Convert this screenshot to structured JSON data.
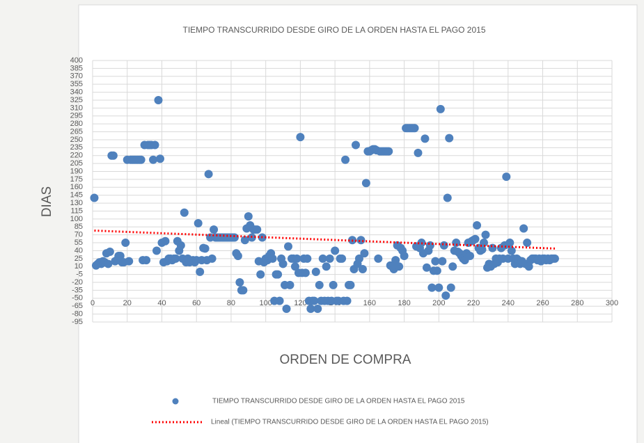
{
  "chart_data": {
    "type": "scatter",
    "title": "TIEMPO TRANSCURRIDO DESDE GIRO DE LA ORDEN HASTA EL PAGO 2015",
    "x_label": "ORDEN DE COMPRA",
    "y_label": "DIAS",
    "xlim": [
      0,
      300
    ],
    "xticks": [
      0,
      20,
      40,
      60,
      80,
      100,
      120,
      140,
      160,
      180,
      200,
      220,
      240,
      260,
      280,
      300
    ],
    "ylim": [
      -95,
      400
    ],
    "yticks": [
      -95,
      -80,
      -65,
      -50,
      -35,
      -20,
      -5,
      10,
      25,
      40,
      55,
      70,
      85,
      100,
      115,
      130,
      145,
      160,
      175,
      190,
      205,
      220,
      235,
      250,
      265,
      280,
      295,
      310,
      325,
      340,
      355,
      370,
      385,
      400
    ],
    "grid": true,
    "series": [
      {
        "name": "TIEMPO TRANSCURRIDO DESDE GIRO DE LA ORDEN HASTA EL PAGO 2015",
        "color": "#4f81bd",
        "x": [
          1,
          2,
          3,
          4,
          5,
          6,
          7,
          8,
          9,
          10,
          11,
          12,
          13,
          14,
          15,
          16,
          17,
          18,
          19,
          20,
          21,
          22,
          23,
          24,
          25,
          26,
          27,
          28,
          29,
          30,
          31,
          32,
          33,
          34,
          35,
          36,
          37,
          38,
          39,
          40,
          41,
          42,
          43,
          44,
          45,
          46,
          47,
          48,
          49,
          50,
          51,
          52,
          53,
          54,
          55,
          56,
          57,
          58,
          59,
          60,
          61,
          62,
          63,
          64,
          65,
          66,
          67,
          68,
          69,
          70,
          71,
          72,
          73,
          74,
          75,
          76,
          77,
          78,
          79,
          80,
          81,
          82,
          83,
          84,
          85,
          86,
          87,
          88,
          89,
          90,
          91,
          92,
          93,
          94,
          95,
          96,
          97,
          98,
          99,
          100,
          101,
          102,
          103,
          104,
          105,
          106,
          107,
          108,
          109,
          110,
          111,
          112,
          113,
          114,
          115,
          116,
          117,
          118,
          119,
          120,
          121,
          122,
          123,
          124,
          125,
          126,
          127,
          128,
          129,
          130,
          131,
          132,
          133,
          134,
          135,
          136,
          137,
          138,
          139,
          140,
          141,
          142,
          143,
          144,
          145,
          146,
          147,
          148,
          149,
          150,
          151,
          152,
          153,
          154,
          155,
          156,
          157,
          158,
          159,
          160,
          161,
          162,
          163,
          164,
          165,
          166,
          167,
          168,
          169,
          170,
          171,
          172,
          173,
          174,
          175,
          176,
          177,
          178,
          179,
          180,
          181,
          182,
          183,
          184,
          185,
          186,
          187,
          188,
          189,
          190,
          191,
          192,
          193,
          194,
          195,
          196,
          197,
          198,
          199,
          200,
          201,
          202,
          203,
          204,
          205,
          206,
          207,
          208,
          209,
          210,
          211,
          212,
          213,
          214,
          215,
          216,
          217,
          218,
          219,
          220,
          221,
          222,
          223,
          224,
          225,
          226,
          227,
          228,
          229,
          230,
          231,
          232,
          233,
          234,
          235,
          236,
          237,
          238,
          239,
          240,
          241,
          242,
          243,
          244,
          245,
          246,
          247,
          248,
          249,
          250,
          251,
          252,
          253,
          254,
          255,
          256,
          257,
          258,
          259,
          260,
          261,
          262,
          263,
          264,
          265,
          266,
          267
        ],
        "values": [
          140,
          12,
          15,
          18,
          15,
          20,
          18,
          35,
          15,
          38,
          220,
          220,
          20,
          22,
          30,
          30,
          18,
          18,
          55,
          212,
          20,
          212,
          212,
          212,
          212,
          212,
          212,
          212,
          22,
          240,
          22,
          240,
          240,
          240,
          212,
          240,
          40,
          325,
          214,
          55,
          18,
          58,
          20,
          25,
          25,
          22,
          25,
          25,
          58,
          40,
          50,
          25,
          112,
          18,
          25,
          18,
          20,
          22,
          18,
          22,
          92,
          0,
          22,
          45,
          44,
          22,
          185,
          65,
          25,
          80,
          65,
          65,
          65,
          65,
          65,
          65,
          65,
          65,
          65,
          65,
          65,
          65,
          35,
          30,
          -20,
          -35,
          -35,
          60,
          82,
          105,
          88,
          65,
          80,
          80,
          80,
          20,
          -5,
          65,
          18,
          25,
          22,
          30,
          35,
          25,
          -55,
          -5,
          -5,
          -55,
          25,
          15,
          -25,
          -70,
          48,
          -25,
          25,
          25,
          10,
          25,
          -2,
          255,
          -2,
          25,
          -2,
          25,
          -55,
          -70,
          -55,
          -55,
          0,
          -70,
          -25,
          -55,
          25,
          -55,
          10,
          -55,
          25,
          -55,
          -25,
          40,
          -55,
          -55,
          25,
          25,
          -55,
          212,
          -55,
          -25,
          -25,
          60,
          5,
          240,
          15,
          25,
          60,
          5,
          35,
          168,
          228,
          228,
          230,
          232,
          232,
          230,
          25,
          228,
          228,
          228,
          228,
          228,
          228,
          12,
          10,
          5,
          22,
          50,
          10,
          45,
          40,
          30,
          272,
          272,
          272,
          272,
          272,
          272,
          48,
          225,
          45,
          55,
          35,
          252,
          8,
          40,
          50,
          -30,
          2,
          20,
          2,
          -30,
          308,
          20,
          50,
          -45,
          140,
          253,
          -30,
          10,
          40,
          55,
          38,
          35,
          30,
          25,
          22,
          35,
          55,
          30,
          58,
          60,
          62,
          88,
          45,
          40,
          42,
          55,
          70,
          8,
          15,
          10,
          45,
          15,
          25,
          18,
          25,
          45,
          25,
          50,
          180,
          25,
          55,
          40,
          25,
          15,
          25,
          22,
          15,
          20,
          82,
          15,
          55,
          10,
          22,
          25,
          25,
          25,
          22,
          25,
          20,
          25,
          25,
          22,
          25,
          22,
          25,
          25,
          25
        ]
      },
      {
        "name": "Lineal (TIEMPO TRANSCURRIDO DESDE GIRO DE LA ORDEN HASTA EL PAGO 2015)",
        "color": "#ff0000",
        "type": "line",
        "x": [
          1,
          267
        ],
        "values": [
          78,
          44
        ]
      }
    ]
  }
}
